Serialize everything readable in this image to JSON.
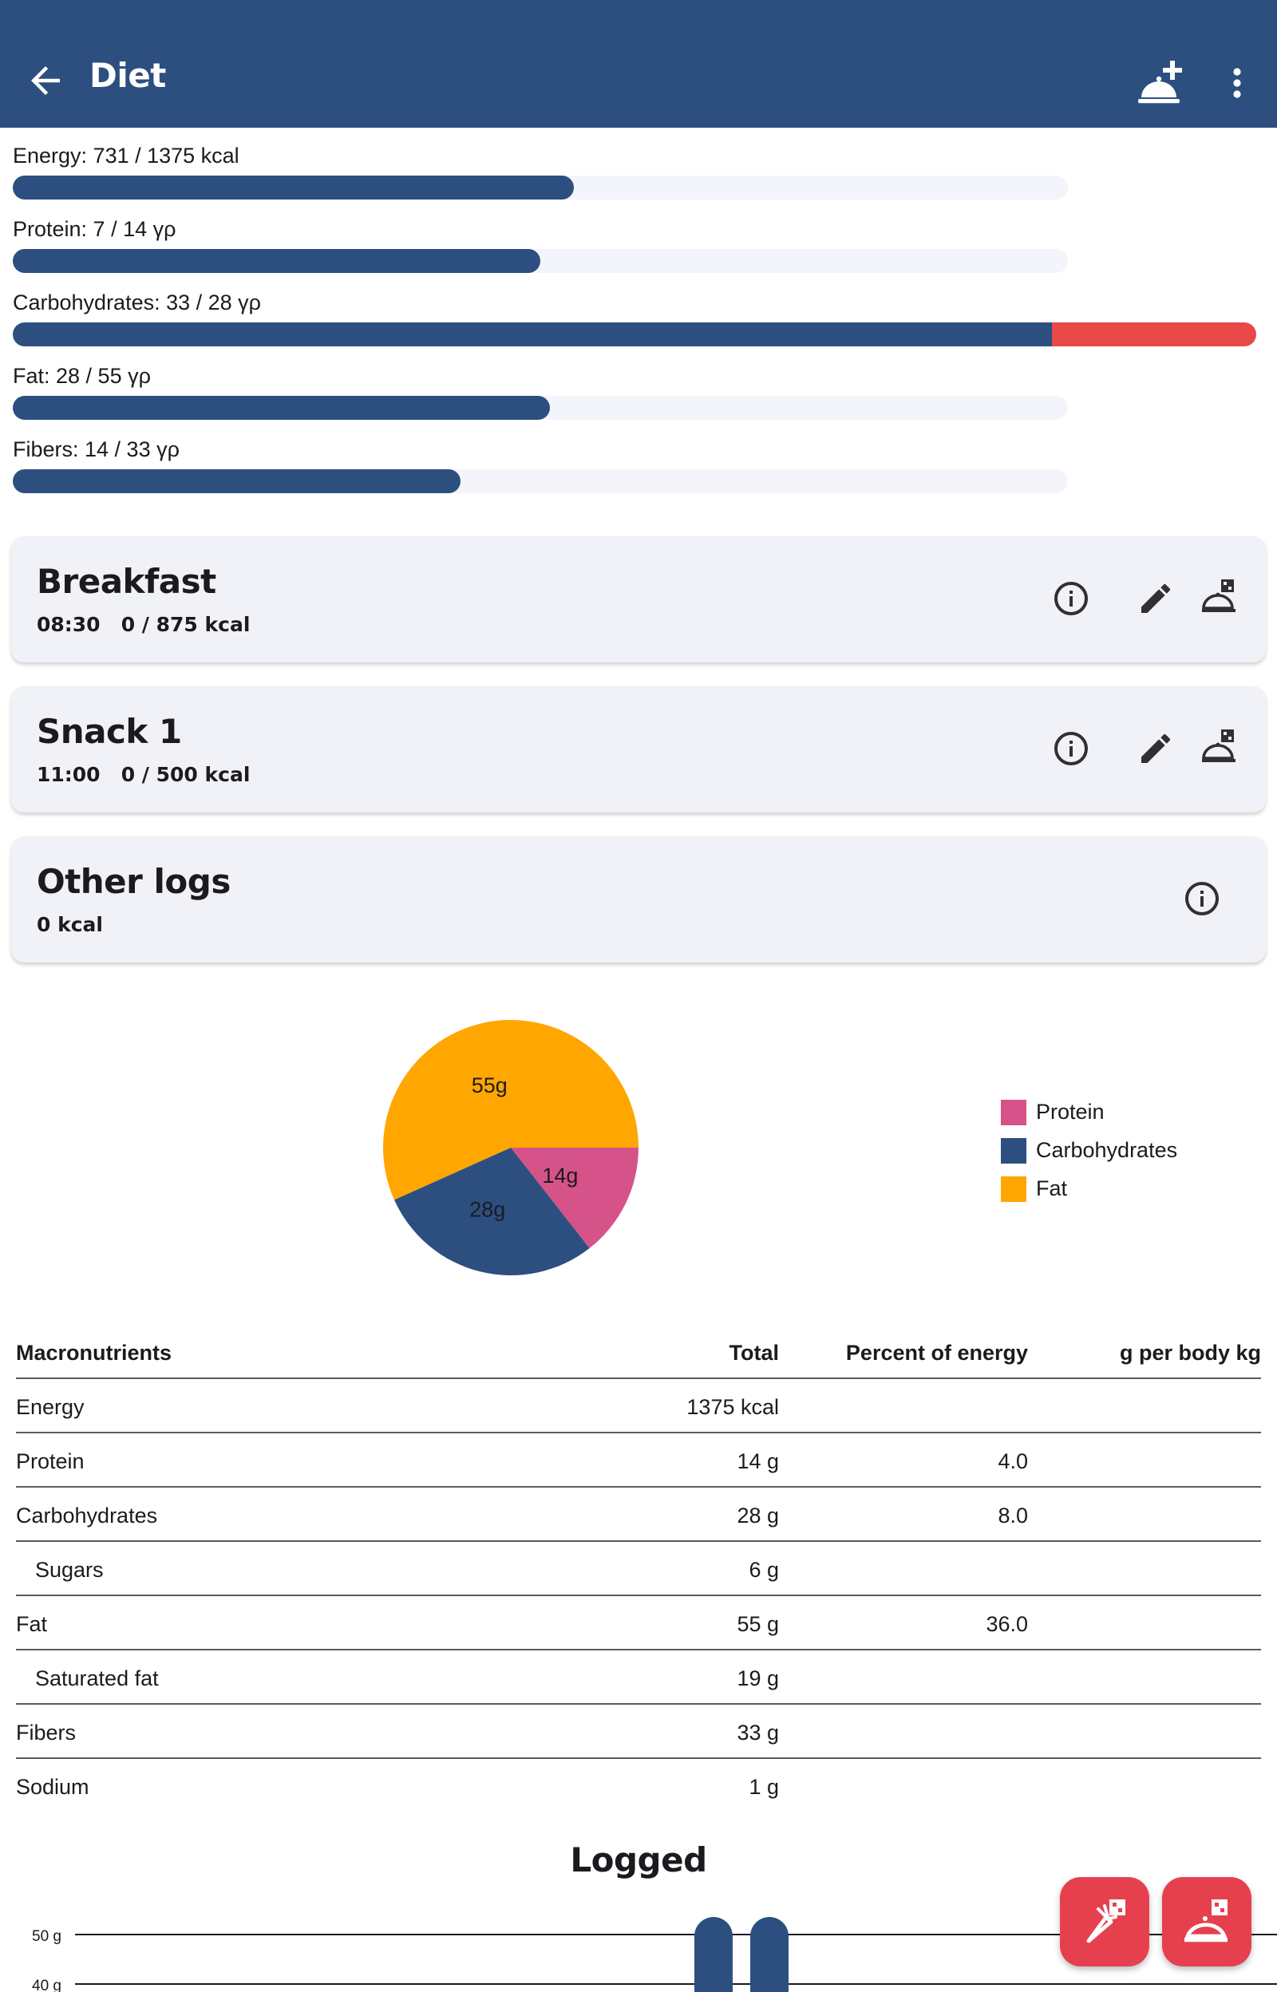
{
  "appbar": {
    "title": "Diet",
    "back_icon": "arrow-back-icon",
    "add_icon": "add-meal-icon",
    "more_icon": "more-vert-icon",
    "background": "#2c4f7f"
  },
  "progress": [
    {
      "label": "Energy: 731 / 1375 kcal",
      "value": 731,
      "goal": 1375
    },
    {
      "label": "Protein: 7 / 14 γρ",
      "value": 7,
      "goal": 14
    },
    {
      "label": "Carbohydrates: 33 / 28 γρ",
      "value": 33,
      "goal": 28
    },
    {
      "label": "Fat: 28 / 55 γρ",
      "value": 28,
      "goal": 55
    },
    {
      "label": "Fibers: 14 / 33 γρ",
      "value": 14,
      "goal": 33
    }
  ],
  "meals": [
    {
      "name": "Breakfast",
      "sub": "08:30   0 / 875 kcal"
    },
    {
      "name": "Snack 1",
      "sub": "11:00   0 / 500 kcal"
    },
    {
      "name": "Other logs",
      "sub": "0 kcal"
    }
  ],
  "chart_data": {
    "type": "pie",
    "slices": [
      {
        "name": "Protein",
        "value": 14,
        "label": "14g",
        "color": "#d6538a"
      },
      {
        "name": "Carbohydrates",
        "value": 28,
        "label": "28g",
        "color": "#2c4f7f"
      },
      {
        "name": "Fat",
        "value": 55,
        "label": "55g",
        "color": "#ffa600"
      }
    ],
    "legend": [
      "Protein",
      "Carbohydrates",
      "Fat"
    ],
    "legend_position": "right"
  },
  "table": {
    "headers": [
      "Macronutrients",
      "Total",
      "Percent of energy",
      "g per body kg"
    ],
    "rows": [
      {
        "name": "Energy",
        "total": "1375 kcal",
        "pct": "",
        "perkg": "",
        "indent": false
      },
      {
        "name": "Protein",
        "total": "14 g",
        "pct": "4.0",
        "perkg": "",
        "indent": false
      },
      {
        "name": "Carbohydrates",
        "total": "28 g",
        "pct": "8.0",
        "perkg": "",
        "indent": false
      },
      {
        "name": "Sugars",
        "total": "6 g",
        "pct": "",
        "perkg": "",
        "indent": true
      },
      {
        "name": "Fat",
        "total": "55 g",
        "pct": "36.0",
        "perkg": "",
        "indent": false
      },
      {
        "name": "Saturated fat",
        "total": "19 g",
        "pct": "",
        "perkg": "",
        "indent": true
      },
      {
        "name": "Fibers",
        "total": "33 g",
        "pct": "",
        "perkg": "",
        "indent": false
      },
      {
        "name": "Sodium",
        "total": "1 g",
        "pct": "",
        "perkg": "",
        "indent": false
      }
    ]
  },
  "logged": {
    "title": "Logged",
    "ticks": [
      "50 g",
      "40 g"
    ]
  },
  "fabs": [
    {
      "icon": "log-ingredient-icon"
    },
    {
      "icon": "log-meal-icon"
    }
  ],
  "colors": {
    "primary": "#2c4f7f",
    "over_goal": "#e84848",
    "fab": "#e6404f"
  }
}
